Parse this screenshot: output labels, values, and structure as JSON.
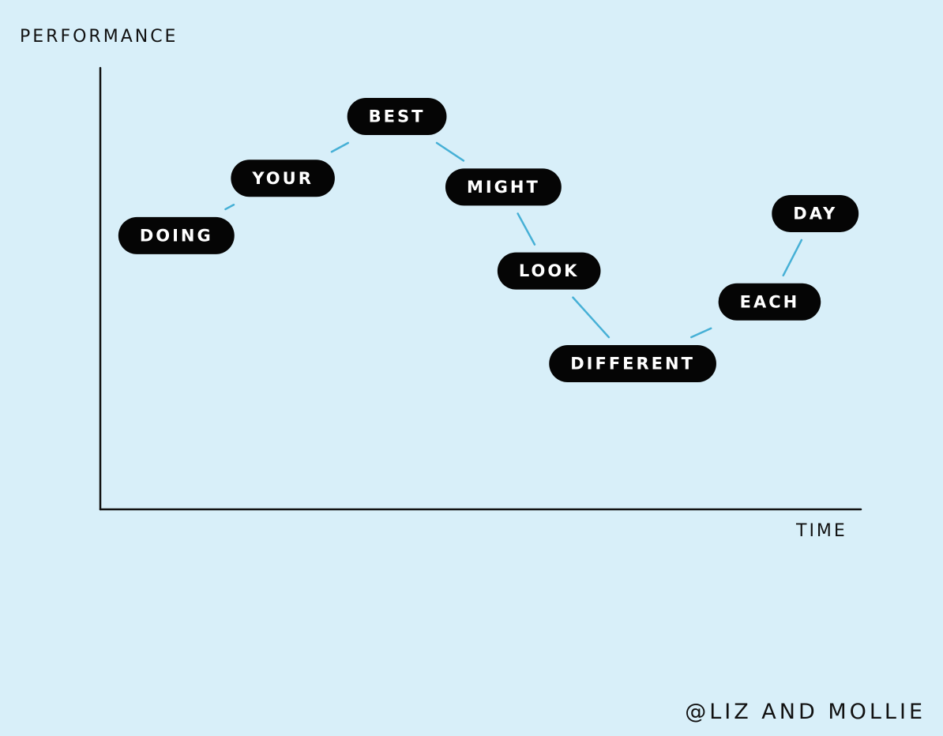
{
  "chart_data": {
    "type": "line",
    "ylabel": "PERFORMANCE",
    "xlabel": "TIME",
    "credit": "@LIZ AND MOLLIE",
    "grid": false,
    "legend": "none",
    "xlim": [
      0,
      10
    ],
    "ylim": [
      0,
      10
    ],
    "points": [
      {
        "label": "DOING",
        "x": 1.0,
        "y": 6.2
      },
      {
        "label": "YOUR",
        "x": 2.4,
        "y": 7.5
      },
      {
        "label": "BEST",
        "x": 3.9,
        "y": 8.9
      },
      {
        "label": "MIGHT",
        "x": 5.3,
        "y": 7.3
      },
      {
        "label": "LOOK",
        "x": 5.9,
        "y": 5.4
      },
      {
        "label": "DIFFERENT",
        "x": 7.0,
        "y": 3.3
      },
      {
        "label": "EACH",
        "x": 8.8,
        "y": 4.7
      },
      {
        "label": "DAY",
        "x": 9.4,
        "y": 6.7
      }
    ],
    "colors": {
      "background": "#d8eff9",
      "pill": "#050505",
      "pill_text": "#ffffff",
      "connector": "#46b0d6",
      "axis": "#111111"
    }
  }
}
